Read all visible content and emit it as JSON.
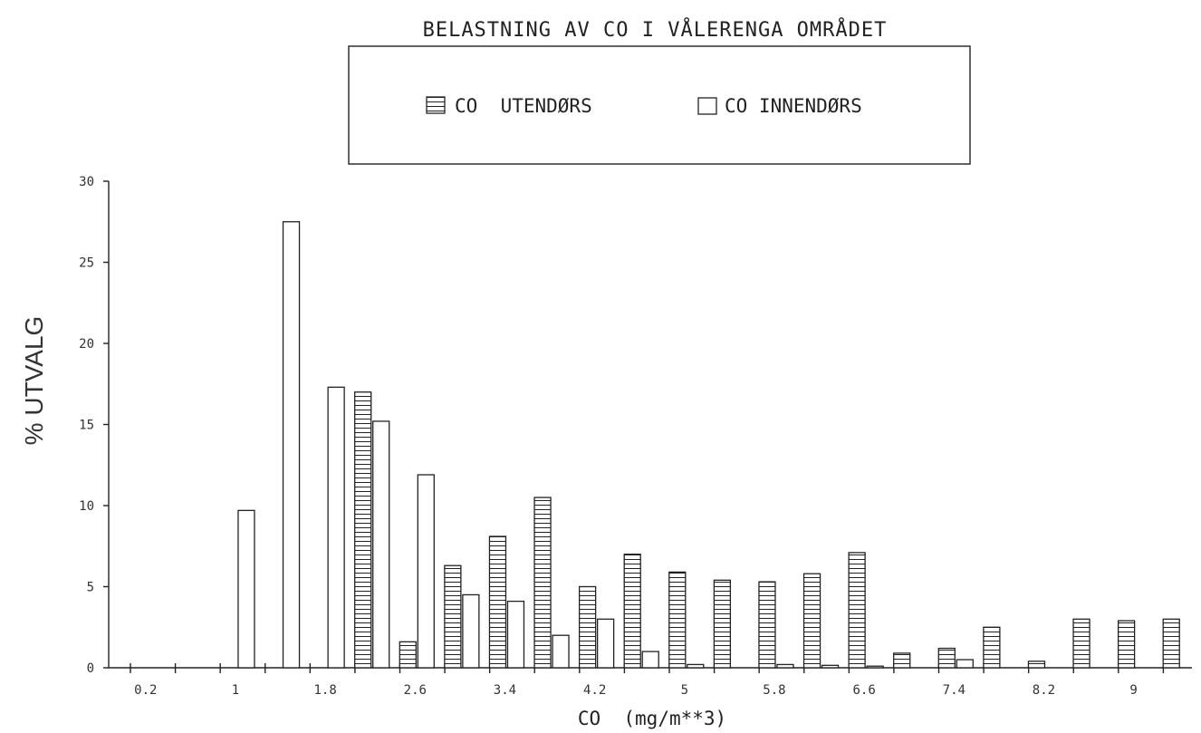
{
  "chart_data": {
    "type": "bar",
    "title": "BELASTNING AV CO I VÅLERENGA OMRÅDET",
    "xlabel": "CO  (mg/m**3)",
    "ylabel": "% UTVALG",
    "ylim": [
      0,
      30
    ],
    "y_ticks": [
      "0",
      "5",
      "10",
      "15",
      "20",
      "25",
      "30"
    ],
    "x_tick_labels": [
      "0.2",
      "1",
      "1.8",
      "2.6",
      "3.4",
      "4.2",
      "5",
      "5.8",
      "6.6",
      "7.4",
      "8.2",
      "9"
    ],
    "legend_position": "top-center",
    "categories": [
      "0.2",
      "0.6",
      "1",
      "1.4",
      "1.8",
      "2.2",
      "2.6",
      "3",
      "3.4",
      "3.8",
      "4.2",
      "4.6",
      "5",
      "5.4",
      "5.8",
      "6.2",
      "6.6",
      "7",
      "7.4",
      "7.8",
      "8.2",
      "8.6",
      "9",
      "9.4"
    ],
    "series": [
      {
        "name": "CO  UTENDØRS",
        "pattern": "hatched",
        "values": [
          0,
          0,
          0,
          0,
          0,
          17.0,
          1.6,
          6.3,
          8.1,
          10.5,
          5.0,
          7.0,
          5.9,
          5.4,
          5.3,
          5.8,
          7.1,
          0.9,
          1.2,
          2.5,
          0.4,
          3.0,
          2.9,
          3.0
        ]
      },
      {
        "name": "CO INNENDØRS",
        "pattern": "open",
        "values": [
          0,
          0,
          9.7,
          27.5,
          17.3,
          15.2,
          11.9,
          4.5,
          4.1,
          2.0,
          3.0,
          1.0,
          0.2,
          0,
          0.2,
          0.15,
          0.1,
          0,
          0.5,
          0,
          0,
          0,
          0,
          0
        ]
      }
    ]
  }
}
